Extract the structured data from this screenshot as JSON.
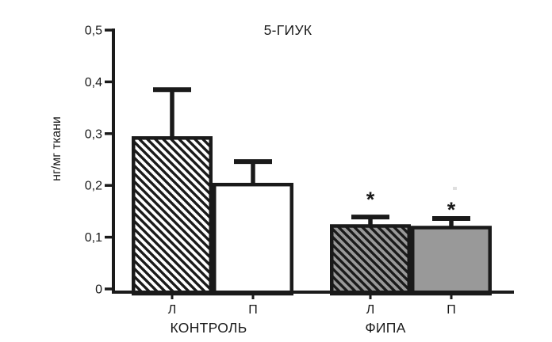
{
  "colors": {
    "ink": "#1a1a1a",
    "gray_fill": "#999999",
    "white_fill": "#ffffff",
    "background": "#ffffff"
  },
  "chart_data": {
    "type": "bar",
    "title": "5-ГИУК",
    "xlabel": "",
    "ylabel": "нг/мг ткани",
    "ylim": [
      0,
      0.5
    ],
    "grid": false,
    "legend": null,
    "decimal_separator": ",",
    "ytick_values": [
      0,
      0.1,
      0.2,
      0.3,
      0.4,
      0.5
    ],
    "ytick_labels": [
      "0",
      "0,1",
      "0,2",
      "0,3",
      "0,4",
      "0,5"
    ],
    "significance_marker": "*",
    "groups": [
      {
        "label": "КОНТРОЛЬ",
        "bars": [
          {
            "label": "Л",
            "value": 0.295,
            "error": 0.09,
            "fill": "white",
            "hatch": true,
            "significant": false
          },
          {
            "label": "П",
            "value": 0.205,
            "error": 0.041,
            "fill": "white",
            "hatch": false,
            "significant": false
          }
        ]
      },
      {
        "label": "ФИПА",
        "bars": [
          {
            "label": "Л",
            "value": 0.125,
            "error": 0.014,
            "fill": "gray",
            "hatch": true,
            "significant": true
          },
          {
            "label": "П",
            "value": 0.122,
            "error": 0.014,
            "fill": "gray",
            "hatch": false,
            "significant": true
          }
        ]
      }
    ]
  }
}
